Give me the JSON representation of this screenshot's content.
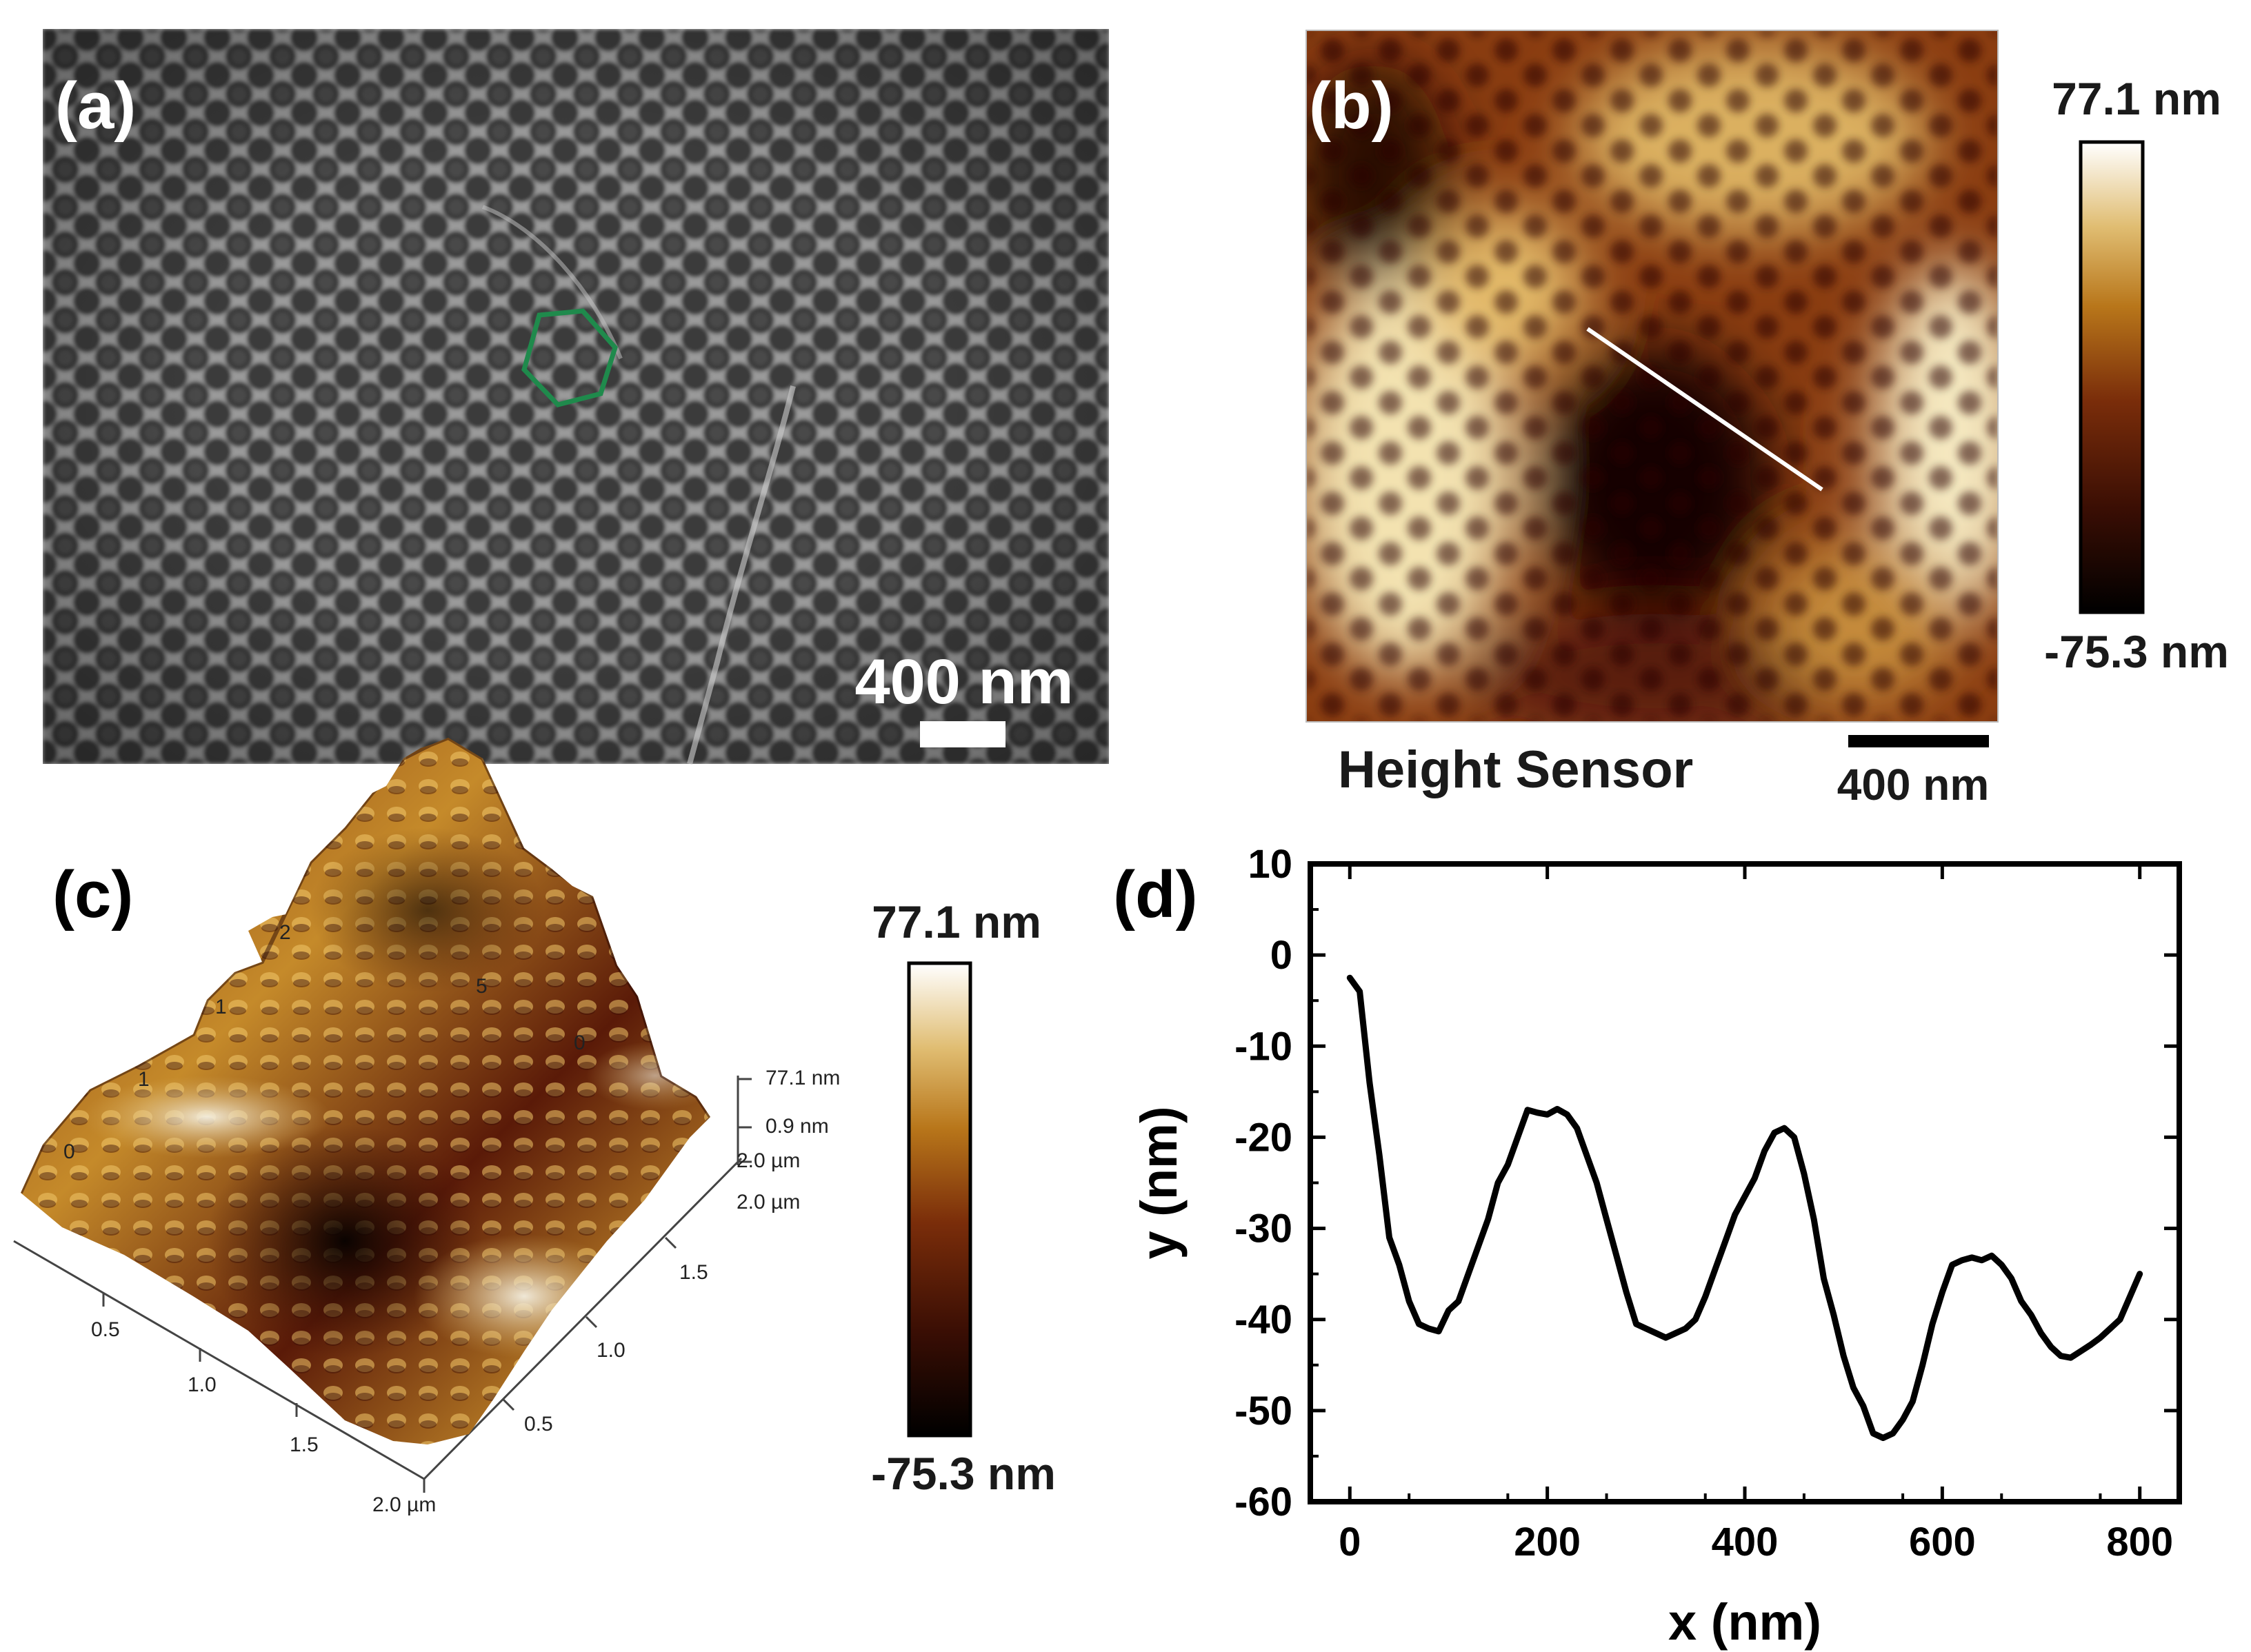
{
  "panels": {
    "a": {
      "label": "(a)",
      "scalebar": "400 nm",
      "highlight_color": "#1f8a4c"
    },
    "b": {
      "label": "(b)",
      "caption": "Height Sensor",
      "scalebar": "400 nm",
      "colorbar_max": "77.1 nm",
      "colorbar_min": "-75.3 nm"
    },
    "c": {
      "label": "(c)",
      "colorbar_max": "77.1 nm",
      "colorbar_min": "-75.3 nm",
      "z_labels": [
        "77.1 nm",
        "0.9 nm",
        "2.0 µm",
        "2.0 µm"
      ],
      "x_ticks": [
        "0.5",
        "1.0",
        "1.5",
        "2.0 µm"
      ],
      "y_ticks": [
        "0.5",
        "1.0",
        "1.5"
      ],
      "back_ticks": [
        "0",
        "1",
        "1",
        "2",
        "5",
        "0"
      ]
    },
    "d": {
      "label": "(d)"
    }
  },
  "colors": {
    "afm_dark": "#000000",
    "afm_mid": "#5a1a08",
    "afm_orange": "#b8761a",
    "afm_light": "#ffffff"
  },
  "chart_data": {
    "type": "line",
    "title": "",
    "xlabel": "x (nm)",
    "ylabel": "y (nm)",
    "xlim": [
      -40,
      840
    ],
    "ylim": [
      -60,
      10
    ],
    "xticks": [
      0,
      200,
      400,
      600,
      800
    ],
    "yticks": [
      10,
      0,
      -10,
      -20,
      -30,
      -40,
      -50,
      -60
    ],
    "series": [
      {
        "name": "height profile",
        "x": [
          0,
          10,
          20,
          30,
          40,
          50,
          60,
          70,
          80,
          90,
          100,
          110,
          120,
          130,
          140,
          150,
          160,
          170,
          180,
          190,
          200,
          210,
          220,
          230,
          240,
          250,
          260,
          270,
          280,
          290,
          300,
          310,
          320,
          330,
          340,
          350,
          360,
          370,
          380,
          390,
          400,
          410,
          420,
          430,
          440,
          450,
          460,
          470,
          480,
          490,
          500,
          510,
          520,
          530,
          540,
          550,
          560,
          570,
          580,
          590,
          600,
          610,
          620,
          630,
          640,
          650,
          660,
          670,
          680,
          690,
          700,
          710,
          720,
          730,
          740,
          750,
          760,
          770,
          780,
          790,
          800
        ],
        "y": [
          -2.5,
          -4,
          -14,
          -22,
          -31,
          -34,
          -38,
          -40.5,
          -41,
          -41.3,
          -39,
          -38,
          -35,
          -32,
          -29,
          -25,
          -23,
          -20,
          -17,
          -17.3,
          -17.5,
          -16.9,
          -17.5,
          -19,
          -22,
          -25,
          -29,
          -33,
          -37,
          -40.5,
          -41,
          -41.5,
          -42,
          -41.5,
          -41,
          -40,
          -37.5,
          -34.5,
          -31.5,
          -28.5,
          -26.5,
          -24.5,
          -21.5,
          -19.5,
          -19,
          -20,
          -24,
          -29,
          -35.5,
          -39.5,
          -44,
          -47.5,
          -49.5,
          -52.5,
          -53,
          -52.5,
          -51,
          -49,
          -45,
          -40.5,
          -37,
          -34,
          -33.5,
          -33.2,
          -33.5,
          -33,
          -34,
          -35.5,
          -38,
          -39.5,
          -41.5,
          -43,
          -44,
          -44.2,
          -43.5,
          -42.8,
          -42,
          -41,
          -40,
          -37.5,
          -35
        ]
      }
    ]
  }
}
